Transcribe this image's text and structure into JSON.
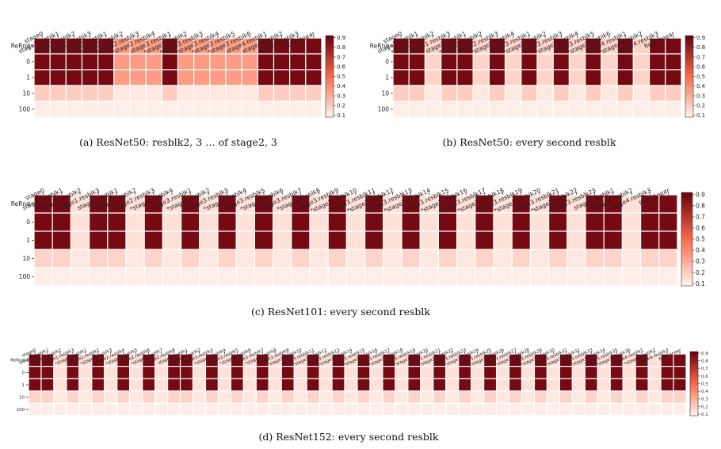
{
  "colorbar": {
    "ticks": [
      "0.9",
      "0.8",
      "0.7",
      "0.6",
      "0.5",
      "0.4",
      "0.3",
      "0.2",
      "0.1"
    ],
    "min": 0.08,
    "max": 0.92
  },
  "colors": {
    "low": "#fff5f0",
    "mid": "#fb6a4a",
    "high": "#67000d",
    "grid": "#ffffff"
  },
  "chart_data": [
    {
      "type": "heatmap",
      "caption": "(a) ResNet50: resblk2, 3 … of stage2, 3",
      "rows": [
        "ReRnd",
        "0",
        "1",
        "10",
        "100"
      ],
      "columns": [
        "stage0",
        "stage1.resblk1",
        "stage1.resblk2",
        "stage1.resblk3",
        "stage2.resblk1",
        "*stage2.resblk2",
        "*stage2.resblk3",
        "*stage2.resblk4",
        "stage3.resblk1",
        "*stage3.resblk2",
        "*stage3.resblk3",
        "*stage3.resblk4",
        "*stage3.resblk5",
        "*stage3.resblk6",
        "stage4.resblk1",
        "stage4.resblk2",
        "stage4.resblk3",
        "final_linear"
      ],
      "pattern": [
        1,
        1,
        1,
        1,
        1,
        0,
        0,
        0,
        1,
        0,
        0,
        0,
        0,
        0,
        1,
        1,
        1,
        1
      ],
      "row_values_keep": [
        0.88,
        0.88,
        0.88,
        0.2,
        0.1
      ],
      "row_values_reinit": [
        0.35,
        0.35,
        0.35,
        0.12,
        0.1
      ]
    },
    {
      "type": "heatmap",
      "caption": "(b) ResNet50: every second resblk",
      "rows": [
        "ReRnd",
        "0",
        "1",
        "10",
        "100"
      ],
      "columns": [
        "stage0",
        "stage1.resblk1",
        "*stage1.resblk2",
        "stage1.resblk3",
        "stage2.resblk1",
        "*stage2.resblk2",
        "stage2.resblk3",
        "*stage2.resblk4",
        "stage3.resblk1",
        "*stage3.resblk2",
        "stage3.resblk3",
        "*stage3.resblk4",
        "stage3.resblk5",
        "*stage3.resblk6",
        "stage4.resblk1",
        "*stage4.resblk2",
        "stage4.resblk3",
        "final_linear"
      ],
      "pattern": [
        1,
        1,
        0,
        1,
        1,
        0,
        1,
        0,
        1,
        0,
        1,
        0,
        1,
        0,
        1,
        0,
        1,
        1
      ],
      "row_values_keep": [
        0.88,
        0.88,
        0.88,
        0.2,
        0.1
      ],
      "row_values_reinit": [
        0.18,
        0.18,
        0.18,
        0.12,
        0.1
      ]
    },
    {
      "type": "heatmap",
      "caption": "(c) ResNet101: every second resblk",
      "rows": [
        "ReRnd",
        "0",
        "1",
        "10",
        "100"
      ],
      "columns": [
        "stage0",
        "stage1.resblk1",
        "*stage1.resblk2",
        "stage1.resblk3",
        "stage2.resblk1",
        "*stage2.resblk2",
        "stage2.resblk3",
        "*stage2.resblk4",
        "stage3.resblk1",
        "*stage3.resblk2",
        "stage3.resblk3",
        "*stage3.resblk4",
        "stage3.resblk5",
        "*stage3.resblk6",
        "stage3.resblk7",
        "*stage3.resblk8",
        "stage3.resblk9",
        "*stage3.resblk10",
        "stage3.resblk11",
        "*stage3.resblk12",
        "stage3.resblk13",
        "*stage3.resblk14",
        "stage3.resblk15",
        "*stage3.resblk16",
        "stage3.resblk17",
        "*stage3.resblk18",
        "stage3.resblk19",
        "*stage3.resblk20",
        "stage3.resblk21",
        "*stage3.resblk22",
        "stage3.resblk23",
        "stage4.resblk1",
        "*stage4.resblk2",
        "stage4.resblk3",
        "final_linear"
      ],
      "pattern": [
        1,
        1,
        0,
        1,
        1,
        0,
        1,
        0,
        1,
        0,
        1,
        0,
        1,
        0,
        1,
        0,
        1,
        0,
        1,
        0,
        1,
        0,
        1,
        0,
        1,
        0,
        1,
        0,
        1,
        0,
        1,
        1,
        0,
        1,
        1
      ],
      "row_values_keep": [
        0.88,
        0.88,
        0.88,
        0.18,
        0.1
      ],
      "row_values_reinit": [
        0.14,
        0.14,
        0.14,
        0.12,
        0.1
      ]
    },
    {
      "type": "heatmap",
      "caption": "(d) ResNet152: every second resblk",
      "rows": [
        "ReRnd",
        "0",
        "1",
        "10",
        "100"
      ],
      "columns": [
        "stage0",
        "stage1.resblk1",
        "*stage1.resblk2",
        "stage1.resblk3",
        "*stage2.resblk1",
        "stage2.resblk2",
        "*stage2.resblk3",
        "stage2.resblk4",
        "*stage2.resblk5",
        "stage2.resblk6",
        "*stage2.resblk7",
        "stage2.resblk8",
        "stage3.resblk1",
        "*stage3.resblk2",
        "stage3.resblk3",
        "*stage3.resblk4",
        "stage3.resblk5",
        "*stage3.resblk6",
        "stage3.resblk7",
        "*stage3.resblk8",
        "stage3.resblk9",
        "*stage3.resblk10",
        "stage3.resblk11",
        "*stage3.resblk12",
        "stage3.resblk13",
        "*stage3.resblk14",
        "stage3.resblk15",
        "*stage3.resblk16",
        "stage3.resblk17",
        "*stage3.resblk18",
        "stage3.resblk19",
        "*stage3.resblk20",
        "stage3.resblk21",
        "*stage3.resblk22",
        "stage3.resblk23",
        "*stage3.resblk24",
        "stage3.resblk25",
        "*stage3.resblk26",
        "stage3.resblk27",
        "*stage3.resblk28",
        "stage3.resblk29",
        "*stage3.resblk30",
        "stage3.resblk31",
        "*stage3.resblk32",
        "stage3.resblk33",
        "*stage3.resblk34",
        "stage3.resblk35",
        "*stage3.resblk36",
        "stage4.resblk1",
        "*stage4.resblk2",
        "stage4.resblk3",
        "final_linear"
      ],
      "pattern": [
        1,
        1,
        0,
        1,
        0,
        1,
        0,
        1,
        0,
        1,
        0,
        1,
        1,
        0,
        1,
        0,
        1,
        0,
        1,
        0,
        1,
        0,
        1,
        0,
        1,
        0,
        1,
        0,
        1,
        0,
        1,
        0,
        1,
        0,
        1,
        0,
        1,
        0,
        1,
        0,
        1,
        0,
        1,
        0,
        1,
        0,
        1,
        0,
        1,
        0,
        1,
        1
      ],
      "row_values_keep": [
        0.88,
        0.88,
        0.88,
        0.18,
        0.1
      ],
      "row_values_reinit": [
        0.14,
        0.14,
        0.14,
        0.12,
        0.1
      ]
    }
  ]
}
